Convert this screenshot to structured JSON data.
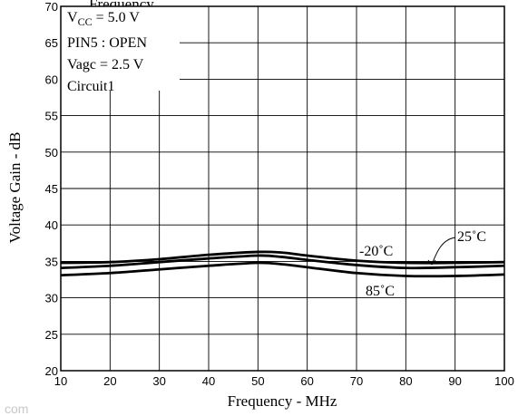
{
  "chart_data": {
    "type": "line",
    "title": "Frequency",
    "xlabel": "Frequency - MHz",
    "ylabel": "Voltage Gain - dB",
    "xlim": [
      10,
      100
    ],
    "ylim": [
      20,
      70
    ],
    "xticks": [
      10,
      20,
      30,
      40,
      50,
      60,
      70,
      80,
      90,
      100
    ],
    "yticks": [
      20,
      25,
      30,
      35,
      40,
      45,
      50,
      55,
      60,
      65,
      70
    ],
    "grid": true,
    "conditions": [
      "VCC = 5.0 V",
      "PIN5 : OPEN",
      "Vagc = 2.5 V",
      "Circuit1"
    ],
    "conditions_parts": [
      {
        "main": "V",
        "sub": "CC",
        "rest": " = 5.0 V"
      },
      {
        "main": "PIN5 : OPEN"
      },
      {
        "main": "Vagc = 2.5 V"
      },
      {
        "main": "Circuit1"
      }
    ],
    "x": [
      10,
      20,
      30,
      40,
      50,
      55,
      60,
      70,
      80,
      90,
      100
    ],
    "series": [
      {
        "name": "-20˚C",
        "values": [
          34.8,
          34.9,
          35.3,
          35.9,
          36.3,
          36.2,
          35.8,
          35.1,
          34.8,
          34.8,
          34.9
        ]
      },
      {
        "name": "25˚C",
        "values": [
          34.1,
          34.4,
          34.9,
          35.4,
          35.8,
          35.6,
          35.2,
          34.5,
          34.1,
          34.2,
          34.4
        ]
      },
      {
        "name": "85˚C",
        "values": [
          33.1,
          33.4,
          33.9,
          34.4,
          34.8,
          34.6,
          34.2,
          33.4,
          33.0,
          33.0,
          33.2
        ]
      }
    ],
    "watermark": "com"
  }
}
